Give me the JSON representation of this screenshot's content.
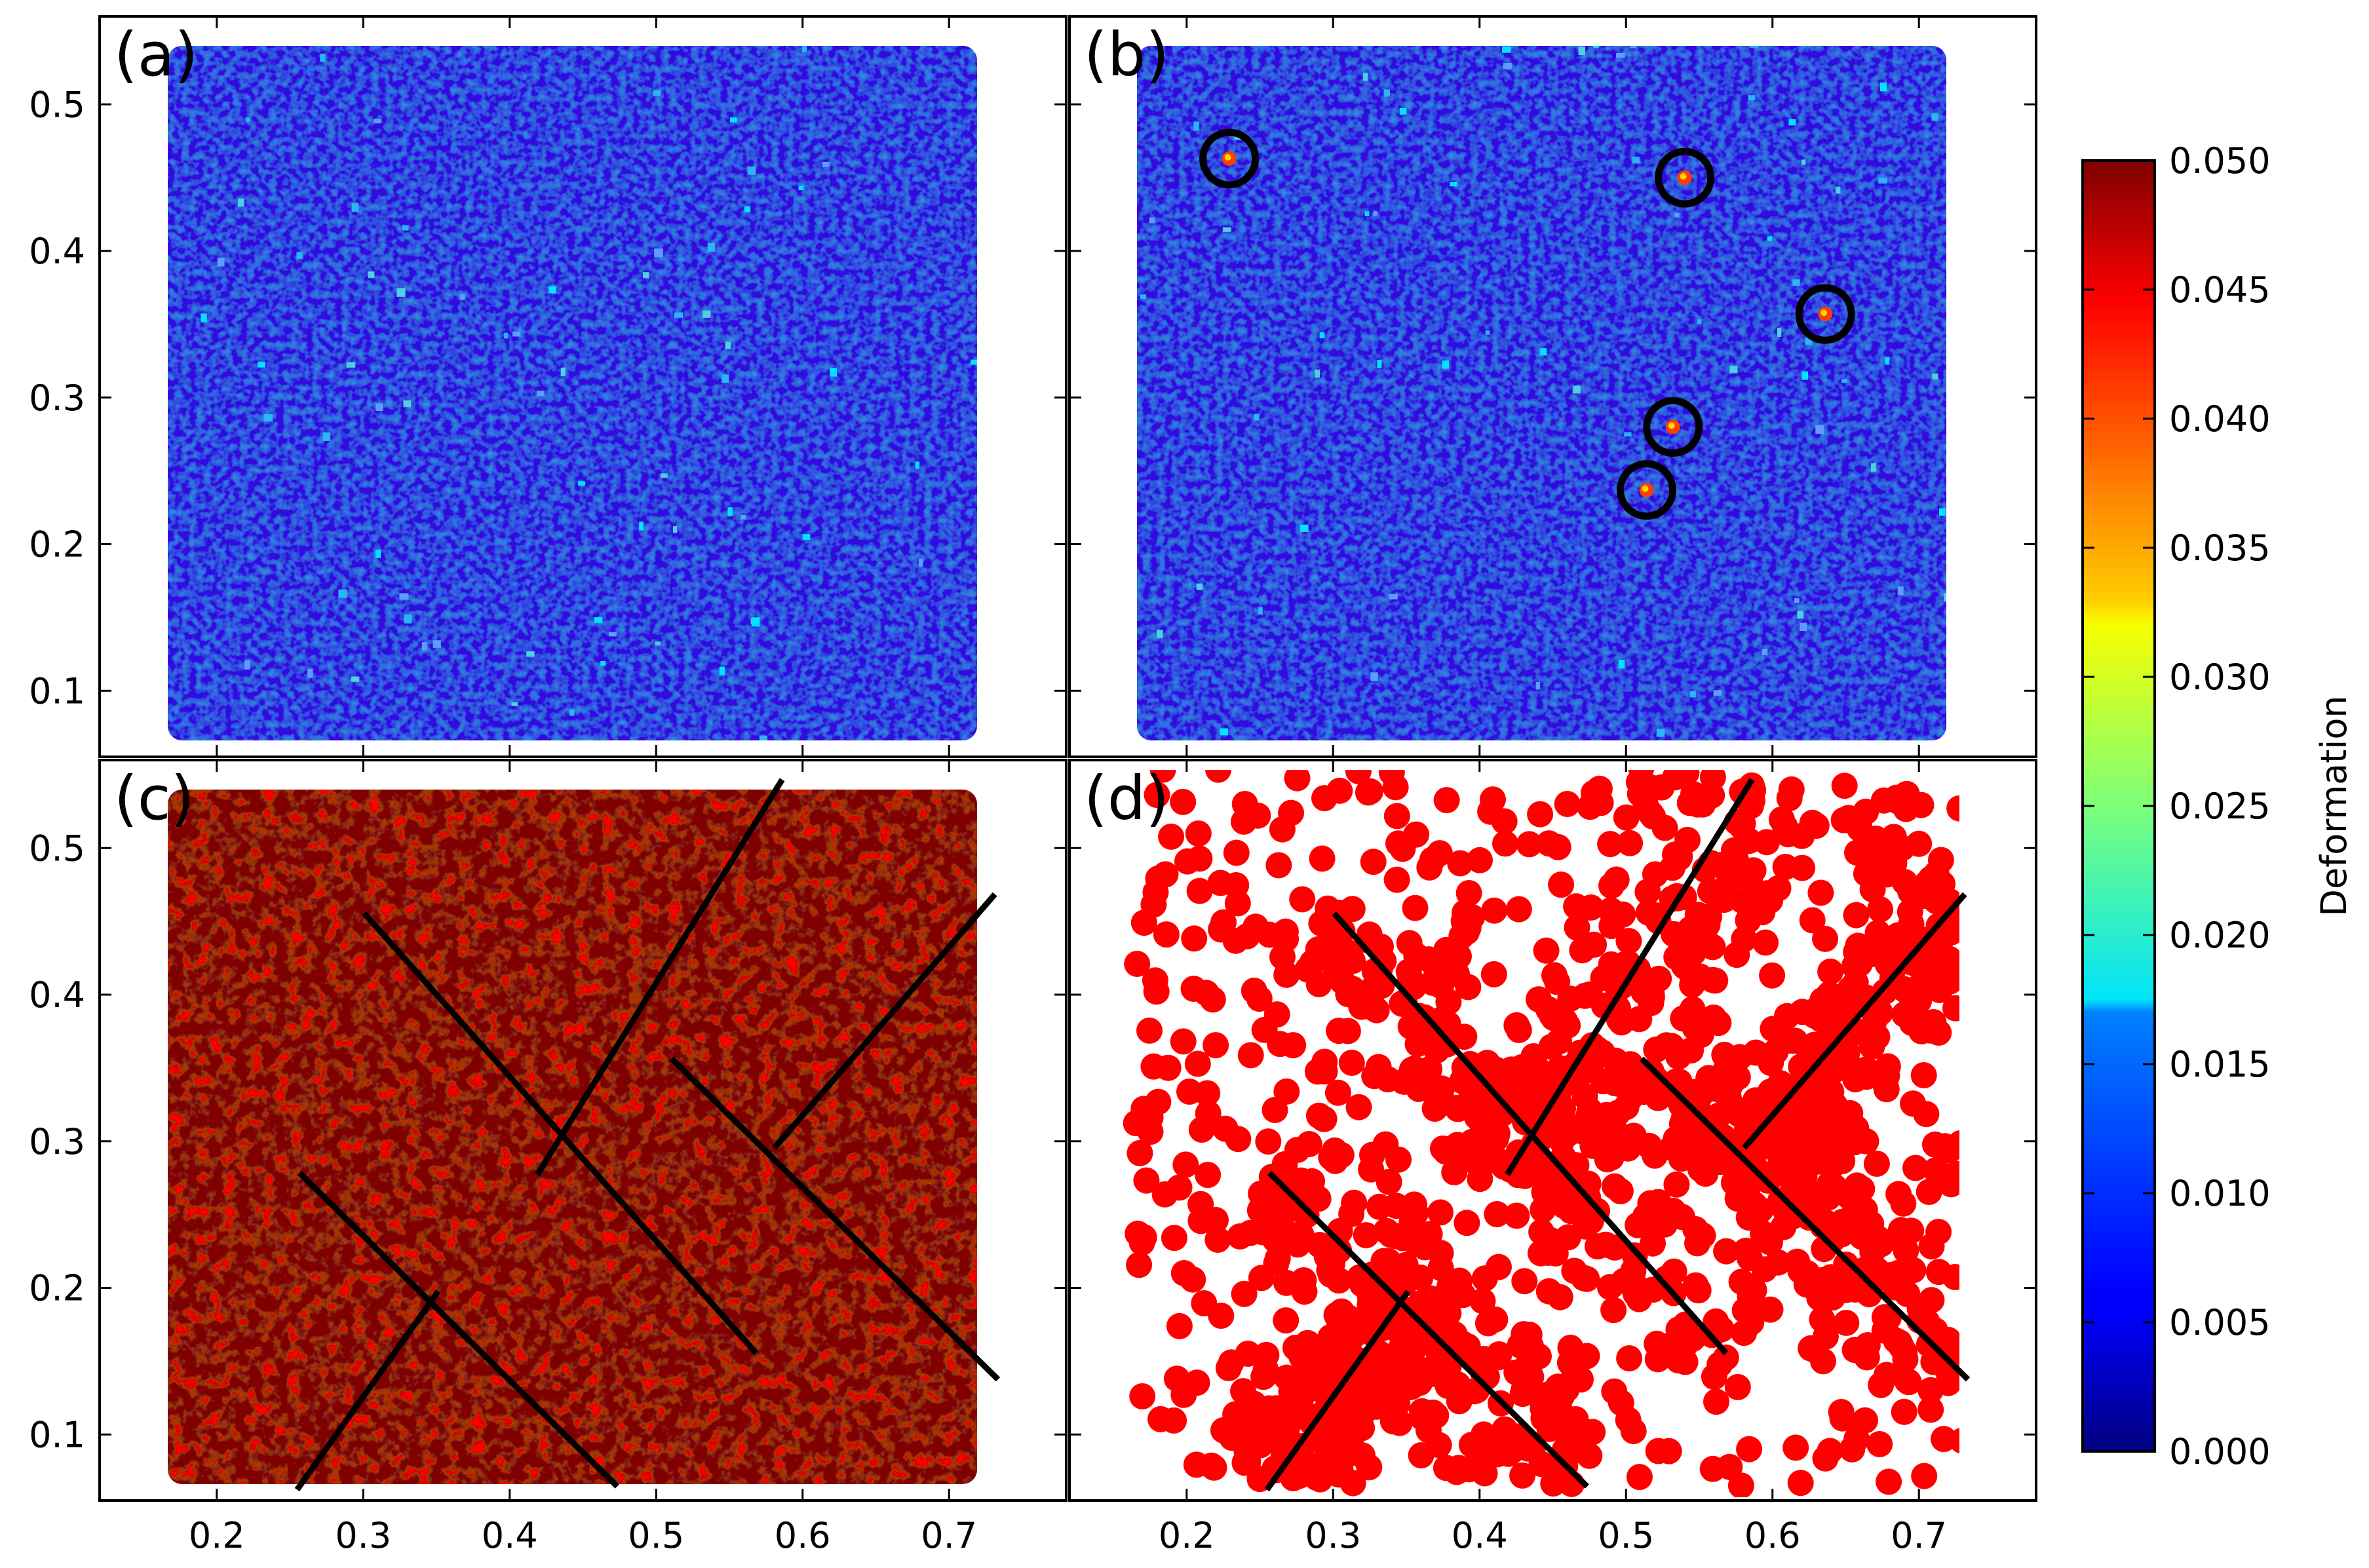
{
  "chart_data": {
    "type": "scatter",
    "layout": "2x2 grid, shared axes",
    "xlim": [
      0.12,
      0.78
    ],
    "ylim": [
      0.055,
      0.56
    ],
    "x_ticks": [
      "0.2",
      "0.3",
      "0.4",
      "0.5",
      "0.6",
      "0.7"
    ],
    "y_ticks": [
      "0.1",
      "0.2",
      "0.3",
      "0.4",
      "0.5"
    ],
    "x_tick_values": [
      0.2,
      0.3,
      0.4,
      0.5,
      0.6,
      0.7
    ],
    "y_tick_values": [
      0.1,
      0.2,
      0.3,
      0.4,
      0.5
    ],
    "sample_region": {
      "x": [
        0.165,
        0.73
      ],
      "y": [
        0.065,
        0.555
      ]
    },
    "colorbar": {
      "label": "Deformation",
      "range": [
        0.0,
        0.05
      ],
      "colormap": "jet",
      "ticks": [
        "0.050",
        "0.045",
        "0.040",
        "0.035",
        "0.030",
        "0.025",
        "0.020",
        "0.015",
        "0.010",
        "0.005",
        "0.000"
      ],
      "tick_values": [
        0.05,
        0.045,
        0.04,
        0.035,
        0.03,
        0.025,
        0.02,
        0.015,
        0.01,
        0.005,
        0.0
      ]
    },
    "panels": [
      {
        "label": "(a)",
        "description": "low deformation everywhere, mostly blue"
      },
      {
        "label": "(b)",
        "circled_hotspots": [
          {
            "x": 0.229,
            "y": 0.463
          },
          {
            "x": 0.54,
            "y": 0.45
          },
          {
            "x": 0.636,
            "y": 0.357
          },
          {
            "x": 0.532,
            "y": 0.28
          },
          {
            "x": 0.514,
            "y": 0.237
          }
        ]
      },
      {
        "label": "(c)",
        "description": "high deformation (dark red) with shear bands"
      },
      {
        "label": "(d)",
        "description": "red dots mark high-deformation particles",
        "marker_color": "#ff0000"
      }
    ],
    "shear_band_lines": [
      {
        "x1": 0.302,
        "y1": 0.454,
        "x2": 0.567,
        "y2": 0.157
      },
      {
        "x1": 0.258,
        "y1": 0.277,
        "x2": 0.472,
        "y2": 0.066
      },
      {
        "x1": 0.512,
        "y1": 0.355,
        "x2": 0.732,
        "y2": 0.139
      },
      {
        "x1": 0.42,
        "y1": 0.279,
        "x2": 0.585,
        "y2": 0.545
      },
      {
        "x1": 0.256,
        "y1": 0.064,
        "x2": 0.35,
        "y2": 0.196
      },
      {
        "x1": 0.582,
        "y1": 0.297,
        "x2": 0.73,
        "y2": 0.467
      }
    ]
  }
}
